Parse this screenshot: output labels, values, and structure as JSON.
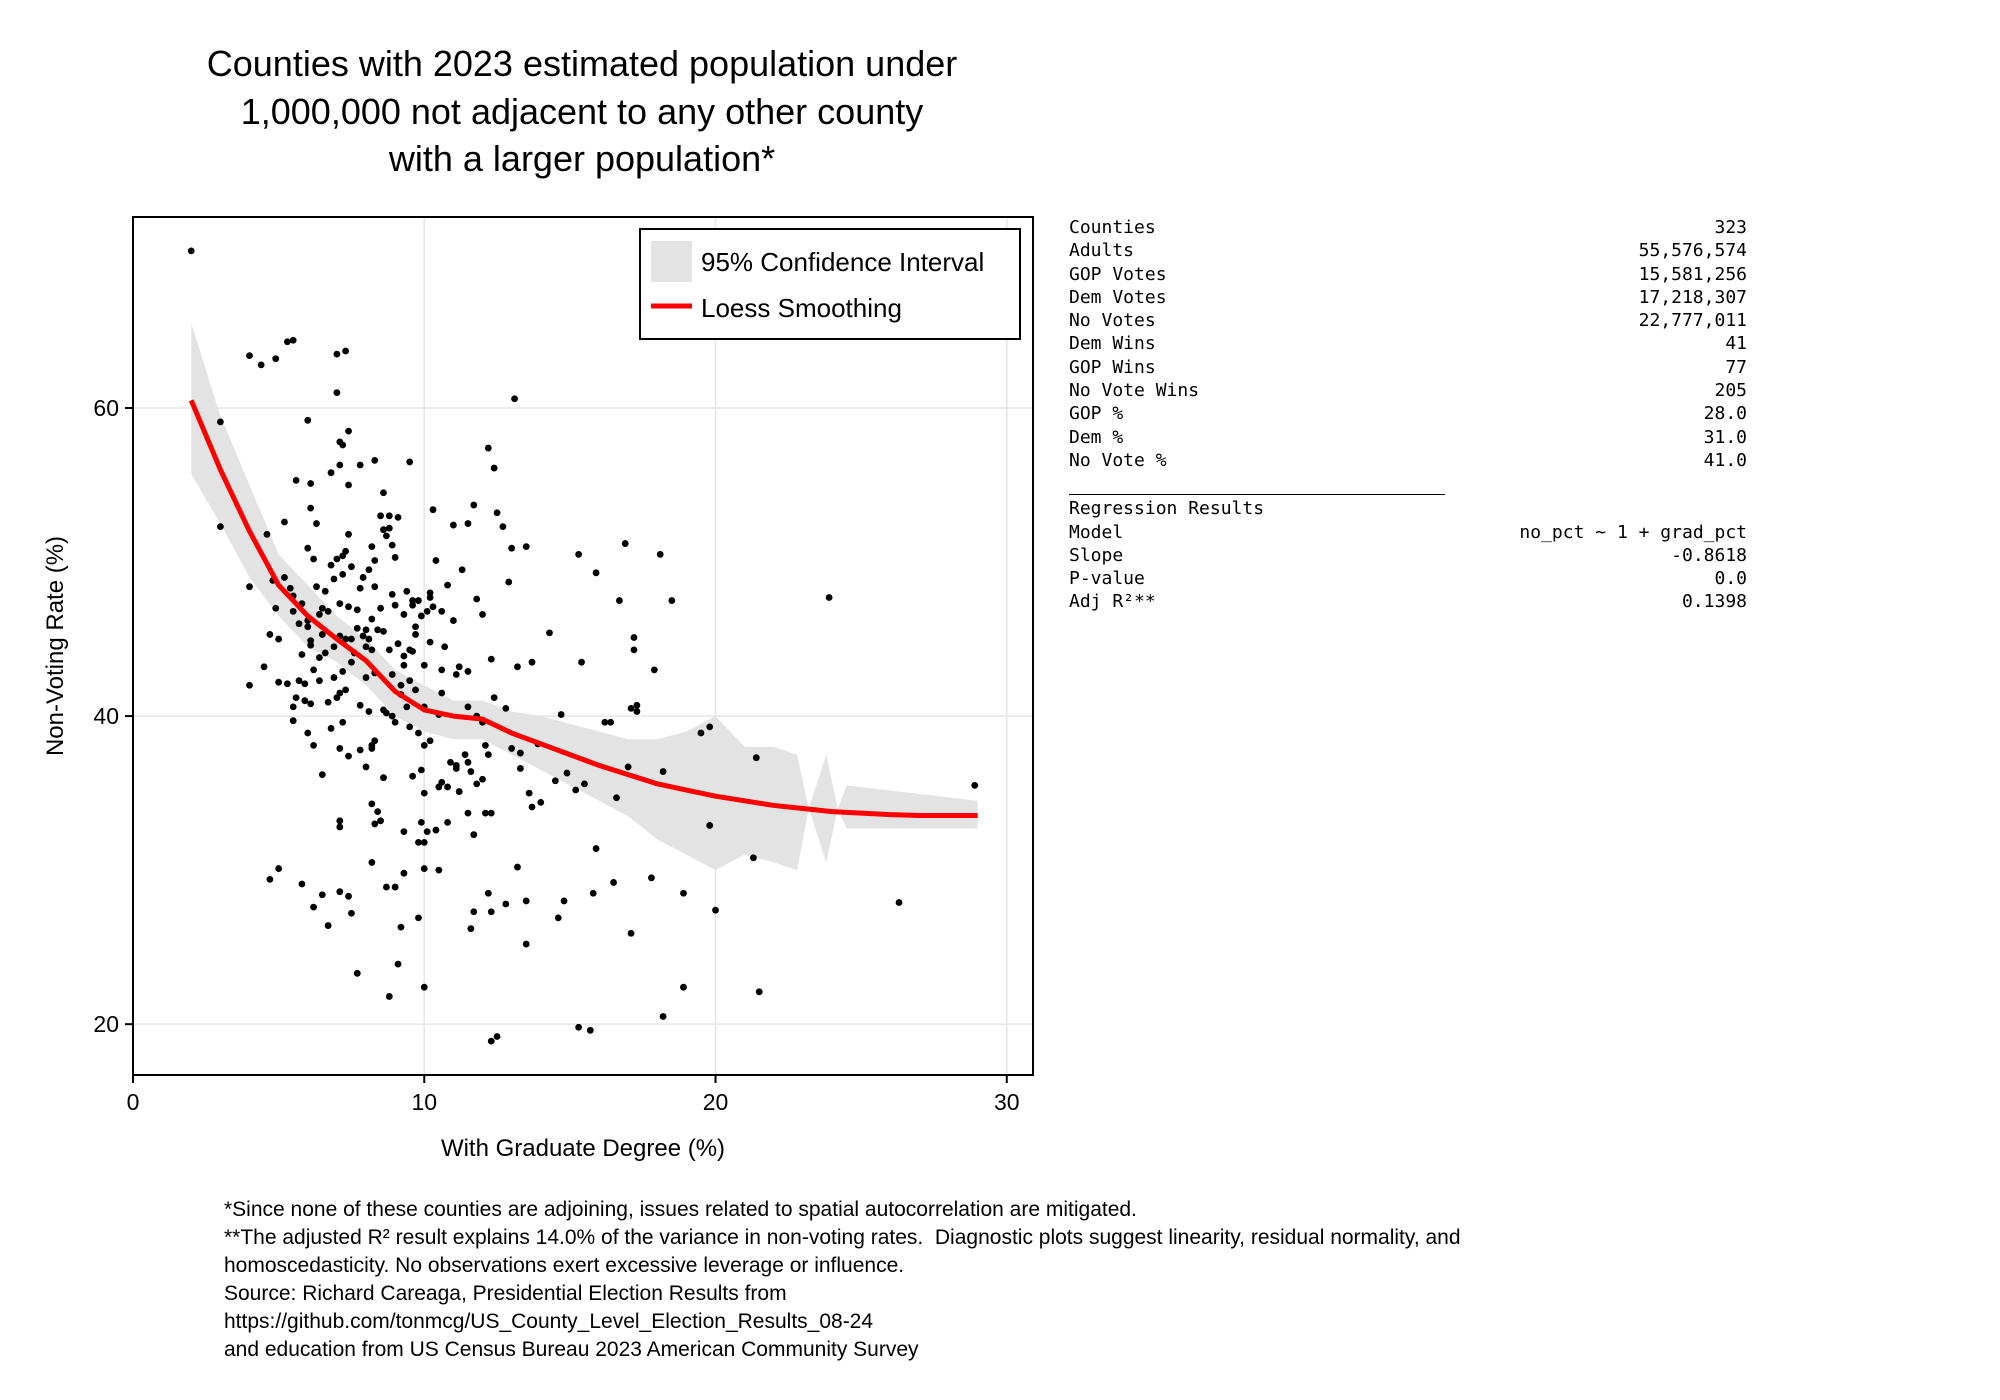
{
  "chart_data": {
    "type": "scatter",
    "title": [
      "Counties with 2023 estimated population under",
      "1,000,000 not adjacent to any other county",
      "with a larger population*"
    ],
    "xlabel": "With Graduate Degree (%)",
    "ylabel": "Non-Voting Rate (%)",
    "xlim": [
      0,
      30.9
    ],
    "ylim": [
      16.7,
      72.4
    ],
    "xticks": [
      0,
      10,
      20,
      30
    ],
    "yticks": [
      20,
      40,
      60
    ],
    "grid": true,
    "legend": {
      "placement": "top-right",
      "entries": [
        "95% Confidence Interval",
        "Loess Smoothing"
      ]
    },
    "colors": {
      "points": "#000000",
      "loess": "#ff0000",
      "ci": "#e3e3e3"
    },
    "loess": {
      "x": [
        2,
        3,
        4,
        5,
        6,
        7,
        8,
        9,
        10,
        11,
        12,
        13,
        14,
        15,
        16,
        17,
        18,
        19,
        20,
        21,
        22,
        23,
        24,
        25,
        26,
        27,
        28,
        29
      ],
      "y": [
        60.5,
        56,
        52,
        48.5,
        46.5,
        45,
        43.6,
        41.6,
        40.4,
        40,
        39.8,
        38.9,
        38.2,
        37.5,
        36.8,
        36.2,
        35.6,
        35.2,
        34.8,
        34.5,
        34.2,
        34.0,
        33.8,
        33.7,
        33.6,
        33.55,
        33.55,
        33.55
      ]
    },
    "ci": {
      "x": [
        2,
        3,
        4,
        5,
        6,
        7,
        8,
        9,
        10,
        11,
        12,
        13,
        14,
        15,
        16,
        17,
        18,
        19,
        20,
        21,
        22,
        22.8,
        23.2,
        23.8,
        24.2,
        24.5,
        29
      ],
      "lower": [
        55.7,
        52.5,
        49,
        46.5,
        44.5,
        43.5,
        42,
        40,
        39,
        38.5,
        38.5,
        37.5,
        36.5,
        35.5,
        34.5,
        33.5,
        32,
        31,
        30,
        31,
        30.5,
        30,
        34,
        30.5,
        34,
        32.7,
        32.7
      ],
      "upper": [
        65.5,
        59.5,
        55,
        50.5,
        48.5,
        46.5,
        45,
        43,
        42,
        41,
        41,
        40.3,
        40,
        39.5,
        39,
        38.5,
        38.5,
        39,
        40,
        38,
        38,
        37.5,
        34,
        37.5,
        34,
        35.5,
        34.5
      ]
    },
    "points": [
      [
        2.0,
        70.2
      ],
      [
        3.0,
        59.1
      ],
      [
        3.0,
        52.3
      ],
      [
        4.0,
        63.4
      ],
      [
        4.4,
        62.8
      ],
      [
        4.9,
        63.2
      ],
      [
        5.3,
        64.3
      ],
      [
        5.5,
        64.4
      ],
      [
        7.0,
        63.5
      ],
      [
        7.3,
        63.7
      ],
      [
        7.0,
        61.0
      ],
      [
        13.1,
        60.6
      ],
      [
        4.0,
        48.4
      ],
      [
        4.0,
        42.0
      ],
      [
        4.5,
        43.2
      ],
      [
        4.6,
        51.8
      ],
      [
        4.7,
        45.3
      ],
      [
        4.8,
        48.8
      ],
      [
        5.0,
        45.0
      ],
      [
        5.0,
        42.2
      ],
      [
        5.2,
        52.6
      ],
      [
        5.5,
        39.7
      ],
      [
        5.6,
        55.3
      ],
      [
        6.0,
        59.2
      ],
      [
        6.1,
        55.1
      ],
      [
        6.3,
        52.5
      ],
      [
        6.8,
        55.8
      ],
      [
        7.1,
        56.3
      ],
      [
        7.2,
        57.6
      ],
      [
        7.1,
        57.8
      ],
      [
        7.3,
        50.7
      ],
      [
        7.8,
        56.3
      ],
      [
        9.5,
        56.5
      ],
      [
        12.2,
        57.4
      ],
      [
        12.4,
        56.1
      ],
      [
        10.3,
        53.4
      ],
      [
        11.0,
        52.4
      ],
      [
        11.5,
        52.5
      ],
      [
        11.7,
        53.7
      ],
      [
        12.5,
        53.2
      ],
      [
        12.7,
        52.3
      ],
      [
        13.5,
        51.0
      ],
      [
        13.0,
        50.9
      ],
      [
        15.3,
        50.5
      ],
      [
        15.9,
        49.3
      ],
      [
        16.9,
        51.2
      ],
      [
        18.1,
        50.5
      ],
      [
        16.7,
        47.5
      ],
      [
        18.5,
        47.5
      ],
      [
        23.9,
        47.7
      ],
      [
        17.2,
        45.1
      ],
      [
        17.2,
        44.3
      ],
      [
        14.3,
        45.4
      ],
      [
        15.4,
        43.5
      ],
      [
        17.9,
        43.0
      ],
      [
        13.7,
        43.5
      ],
      [
        17.1,
        40.5
      ],
      [
        17.3,
        40.7
      ],
      [
        17.3,
        40.3
      ],
      [
        16.2,
        39.6
      ],
      [
        16.4,
        39.6
      ],
      [
        14.7,
        40.1
      ],
      [
        19.5,
        38.9
      ],
      [
        19.8,
        39.3
      ],
      [
        18.2,
        36.4
      ],
      [
        21.4,
        37.3
      ],
      [
        17.0,
        36.7
      ],
      [
        16.6,
        34.7
      ],
      [
        19.8,
        32.9
      ],
      [
        21.3,
        30.8
      ],
      [
        15.9,
        31.4
      ],
      [
        16.5,
        29.2
      ],
      [
        17.8,
        29.5
      ],
      [
        18.9,
        28.5
      ],
      [
        20.0,
        27.4
      ],
      [
        26.3,
        27.9
      ],
      [
        17.1,
        25.9
      ],
      [
        18.9,
        22.4
      ],
      [
        21.5,
        22.1
      ],
      [
        18.2,
        20.5
      ],
      [
        15.3,
        19.8
      ],
      [
        15.7,
        19.6
      ],
      [
        12.3,
        18.9
      ],
      [
        12.5,
        19.2
      ],
      [
        28.9,
        35.5
      ],
      [
        14.9,
        36.3
      ],
      [
        14.5,
        35.8
      ],
      [
        15.2,
        35.2
      ],
      [
        15.5,
        35.6
      ],
      [
        14.6,
        26.9
      ],
      [
        14.8,
        28.0
      ],
      [
        15.8,
        28.5
      ],
      [
        13.5,
        28.0
      ],
      [
        13.5,
        25.2
      ],
      [
        13.2,
        30.2
      ],
      [
        12.2,
        28.5
      ],
      [
        12.3,
        27.3
      ],
      [
        12.8,
        27.8
      ],
      [
        11.7,
        27.3
      ],
      [
        11.6,
        26.2
      ],
      [
        12.1,
        33.7
      ],
      [
        12.3,
        33.7
      ],
      [
        11.7,
        32.3
      ],
      [
        11.8,
        35.6
      ],
      [
        12.0,
        35.9
      ],
      [
        11.5,
        33.7
      ],
      [
        11.6,
        36.4
      ],
      [
        11.1,
        36.6
      ],
      [
        11.4,
        37.5
      ],
      [
        12.1,
        38.1
      ],
      [
        12.2,
        37.5
      ],
      [
        12.4,
        41.2
      ],
      [
        12.8,
        40.5
      ],
      [
        13.3,
        37.6
      ],
      [
        13.9,
        38.2
      ],
      [
        13.7,
        34.1
      ],
      [
        14.0,
        34.4
      ],
      [
        13.3,
        36.6
      ],
      [
        13.6,
        35.0
      ],
      [
        10.0,
        22.4
      ],
      [
        10.5,
        30.0
      ],
      [
        10.0,
        30.1
      ],
      [
        10.0,
        31.8
      ],
      [
        10.4,
        32.6
      ],
      [
        9.8,
        31.8
      ],
      [
        10.1,
        32.5
      ],
      [
        9.9,
        33.1
      ],
      [
        10.5,
        35.4
      ],
      [
        10.6,
        35.7
      ],
      [
        10.8,
        35.4
      ],
      [
        10.9,
        37.0
      ],
      [
        11.1,
        36.8
      ],
      [
        10.8,
        33.1
      ],
      [
        9.6,
        36.1
      ],
      [
        9.3,
        32.5
      ],
      [
        9.3,
        29.8
      ],
      [
        9.2,
        26.3
      ],
      [
        9.0,
        28.9
      ],
      [
        9.8,
        26.9
      ],
      [
        8.7,
        28.9
      ],
      [
        8.2,
        30.5
      ],
      [
        7.7,
        23.3
      ],
      [
        8.8,
        21.8
      ],
      [
        9.1,
        23.9
      ],
      [
        7.4,
        28.3
      ],
      [
        7.5,
        27.2
      ],
      [
        7.1,
        28.6
      ],
      [
        6.2,
        27.6
      ],
      [
        6.5,
        28.4
      ],
      [
        6.7,
        26.4
      ],
      [
        5.8,
        29.1
      ],
      [
        5.0,
        30.1
      ],
      [
        4.7,
        29.4
      ],
      [
        7.1,
        33.2
      ],
      [
        7.1,
        32.8
      ],
      [
        8.2,
        34.3
      ],
      [
        8.4,
        33.8
      ],
      [
        8.5,
        33.2
      ],
      [
        6.5,
        36.2
      ],
      [
        7.1,
        37.9
      ],
      [
        7.4,
        37.4
      ],
      [
        7.8,
        37.8
      ],
      [
        8.0,
        36.7
      ],
      [
        8.2,
        38.1
      ],
      [
        8.2,
        37.9
      ],
      [
        8.6,
        36.0
      ],
      [
        6.0,
        38.9
      ],
      [
        6.2,
        38.1
      ],
      [
        6.8,
        39.2
      ],
      [
        7.2,
        39.6
      ],
      [
        7.1,
        41.5
      ],
      [
        7.3,
        41.7
      ],
      [
        6.7,
        40.9
      ],
      [
        6.1,
        40.8
      ],
      [
        5.5,
        40.6
      ],
      [
        5.6,
        41.2
      ],
      [
        5.3,
        42.1
      ],
      [
        5.7,
        42.3
      ],
      [
        5.9,
        42.1
      ],
      [
        5.9,
        41.0
      ],
      [
        6.4,
        42.3
      ],
      [
        6.9,
        42.5
      ],
      [
        7.2,
        42.9
      ],
      [
        7.8,
        40.7
      ],
      [
        8.1,
        40.3
      ],
      [
        8.3,
        42.8
      ],
      [
        8.7,
        40.2
      ],
      [
        8.9,
        40.0
      ],
      [
        9.0,
        39.6
      ],
      [
        9.2,
        41.4
      ],
      [
        9.4,
        40.6
      ],
      [
        9.5,
        39.3
      ],
      [
        9.8,
        38.9
      ],
      [
        10.0,
        38.1
      ],
      [
        10.2,
        38.4
      ],
      [
        10.0,
        40.6
      ],
      [
        9.7,
        41.7
      ],
      [
        8.8,
        44.3
      ],
      [
        8.6,
        45.5
      ],
      [
        8.4,
        45.6
      ],
      [
        8.2,
        46.3
      ],
      [
        8.0,
        45.6
      ],
      [
        7.9,
        45.2
      ],
      [
        7.6,
        44.1
      ],
      [
        7.7,
        45.7
      ],
      [
        7.5,
        45.0
      ],
      [
        7.3,
        45.0
      ],
      [
        7.1,
        45.2
      ],
      [
        6.9,
        44.5
      ],
      [
        6.6,
        44.1
      ],
      [
        6.4,
        43.8
      ],
      [
        6.2,
        43.0
      ],
      [
        6.1,
        44.9
      ],
      [
        6.0,
        45.8
      ],
      [
        5.7,
        46.0
      ],
      [
        5.8,
        47.3
      ],
      [
        5.5,
        47.8
      ],
      [
        5.4,
        48.3
      ],
      [
        5.2,
        49.0
      ],
      [
        6.3,
        48.4
      ],
      [
        6.5,
        47.0
      ],
      [
        6.6,
        48.1
      ],
      [
        6.9,
        48.9
      ],
      [
        7.0,
        50.2
      ],
      [
        7.2,
        50.4
      ],
      [
        7.4,
        51.8
      ],
      [
        7.5,
        49.7
      ],
      [
        7.1,
        47.3
      ],
      [
        7.4,
        47.1
      ],
      [
        7.7,
        46.9
      ],
      [
        7.8,
        48.3
      ],
      [
        8.3,
        48.4
      ],
      [
        8.5,
        47.0
      ],
      [
        8.9,
        47.9
      ],
      [
        9.0,
        47.2
      ],
      [
        9.3,
        46.6
      ],
      [
        9.6,
        47.5
      ],
      [
        9.7,
        45.3
      ],
      [
        9.9,
        46.5
      ],
      [
        10.1,
        46.8
      ],
      [
        10.3,
        47.1
      ],
      [
        10.2,
        48.0
      ],
      [
        10.6,
        46.8
      ],
      [
        10.8,
        48.5
      ],
      [
        11.0,
        46.2
      ],
      [
        10.4,
        50.1
      ],
      [
        11.3,
        49.5
      ],
      [
        11.8,
        47.6
      ],
      [
        12.0,
        46.6
      ],
      [
        12.3,
        43.7
      ],
      [
        12.9,
        48.7
      ],
      [
        13.2,
        43.2
      ],
      [
        13.0,
        37.9
      ],
      [
        11.1,
        42.7
      ],
      [
        11.5,
        42.9
      ],
      [
        11.2,
        43.2
      ],
      [
        10.7,
        44.5
      ],
      [
        11.5,
        40.6
      ],
      [
        11.8,
        40.0
      ],
      [
        12.0,
        39.6
      ],
      [
        10.5,
        40.1
      ],
      [
        10.6,
        41.5
      ],
      [
        9.1,
        44.7
      ],
      [
        9.3,
        43.9
      ],
      [
        9.6,
        44.2
      ],
      [
        9.3,
        43.3
      ],
      [
        8.9,
        42.7
      ],
      [
        9.5,
        42.3
      ],
      [
        8.6,
        40.4
      ],
      [
        8.3,
        38.4
      ],
      [
        8.1,
        45.0
      ],
      [
        8.2,
        44.3
      ],
      [
        7.0,
        41.2
      ],
      [
        6.5,
        45.3
      ],
      [
        5.8,
        44.0
      ],
      [
        6.1,
        44.6
      ],
      [
        8.9,
        51.1
      ],
      [
        8.7,
        51.7
      ],
      [
        8.6,
        52.1
      ],
      [
        8.5,
        53.0
      ],
      [
        8.8,
        53.0
      ],
      [
        9.1,
        52.9
      ],
      [
        8.3,
        50.1
      ],
      [
        8.6,
        54.5
      ],
      [
        8.8,
        52.2
      ],
      [
        8.2,
        51.0
      ],
      [
        8.1,
        49.5
      ],
      [
        7.9,
        49.0
      ],
      [
        8.0,
        44.5
      ],
      [
        6.8,
        49.8
      ],
      [
        7.2,
        49.2
      ],
      [
        6.2,
        50.2
      ],
      [
        6.0,
        50.9
      ],
      [
        6.1,
        53.5
      ],
      [
        6.4,
        46.6
      ],
      [
        6.0,
        46.2
      ],
      [
        6.7,
        46.8
      ],
      [
        8.3,
        56.6
      ],
      [
        7.4,
        55.0
      ],
      [
        7.4,
        58.5
      ],
      [
        9.4,
        48.1
      ],
      [
        9.6,
        47.2
      ],
      [
        9.0,
        50.3
      ],
      [
        9.8,
        47.5
      ],
      [
        10.2,
        47.7
      ],
      [
        5.5,
        46.8
      ],
      [
        4.9,
        47.0
      ],
      [
        10.0,
        43.3
      ],
      [
        10.2,
        44.8
      ],
      [
        9.2,
        42.0
      ],
      [
        9.5,
        44.3
      ],
      [
        9.7,
        45.8
      ],
      [
        10.6,
        43.0
      ],
      [
        11.5,
        37.0
      ],
      [
        11.2,
        35.1
      ],
      [
        8.3,
        33.0
      ],
      [
        8.0,
        42.5
      ],
      [
        7.5,
        43.5
      ],
      [
        9.9,
        36.5
      ],
      [
        10.0,
        35.0
      ]
    ]
  },
  "stats": {
    "summary": [
      {
        "label": "Counties",
        "value": "323"
      },
      {
        "label": "Adults",
        "value": "55,576,574"
      },
      {
        "label": "GOP Votes",
        "value": "15,581,256"
      },
      {
        "label": "Dem Votes",
        "value": "17,218,307"
      },
      {
        "label": "No Votes",
        "value": "22,777,011"
      },
      {
        "label": "Dem Wins",
        "value": "41"
      },
      {
        "label": "GOP Wins",
        "value": "77"
      },
      {
        "label": "No Vote Wins",
        "value": "205"
      },
      {
        "label": "GOP %",
        "value": "28.0"
      },
      {
        "label": "Dem %",
        "value": "31.0"
      },
      {
        "label": "No Vote %",
        "value": "41.0"
      }
    ],
    "regression_title": "Regression Results",
    "regression": [
      {
        "label": "Model",
        "value": "no_pct ~ 1 + grad_pct"
      },
      {
        "label": "Slope",
        "value": "-0.8618"
      },
      {
        "label": "P-value",
        "value": "0.0"
      },
      {
        "label": "Adj R²**",
        "value": "0.1398"
      }
    ]
  },
  "footer": [
    "*Since none of these counties are adjoining, issues related to spatial autocorrelation are mitigated.",
    "**The adjusted R² result explains 14.0% of the variance in non-voting rates.  Diagnostic plots suggest linearity, residual normality, and",
    "homoscedasticity. No observations exert excessive leverage or influence.",
    "Source: Richard Careaga, Presidential Election Results from",
    "https://github.com/tonmcg/US_County_Level_Election_Results_08-24",
    "and education from US Census Bureau 2023 American Community Survey"
  ]
}
